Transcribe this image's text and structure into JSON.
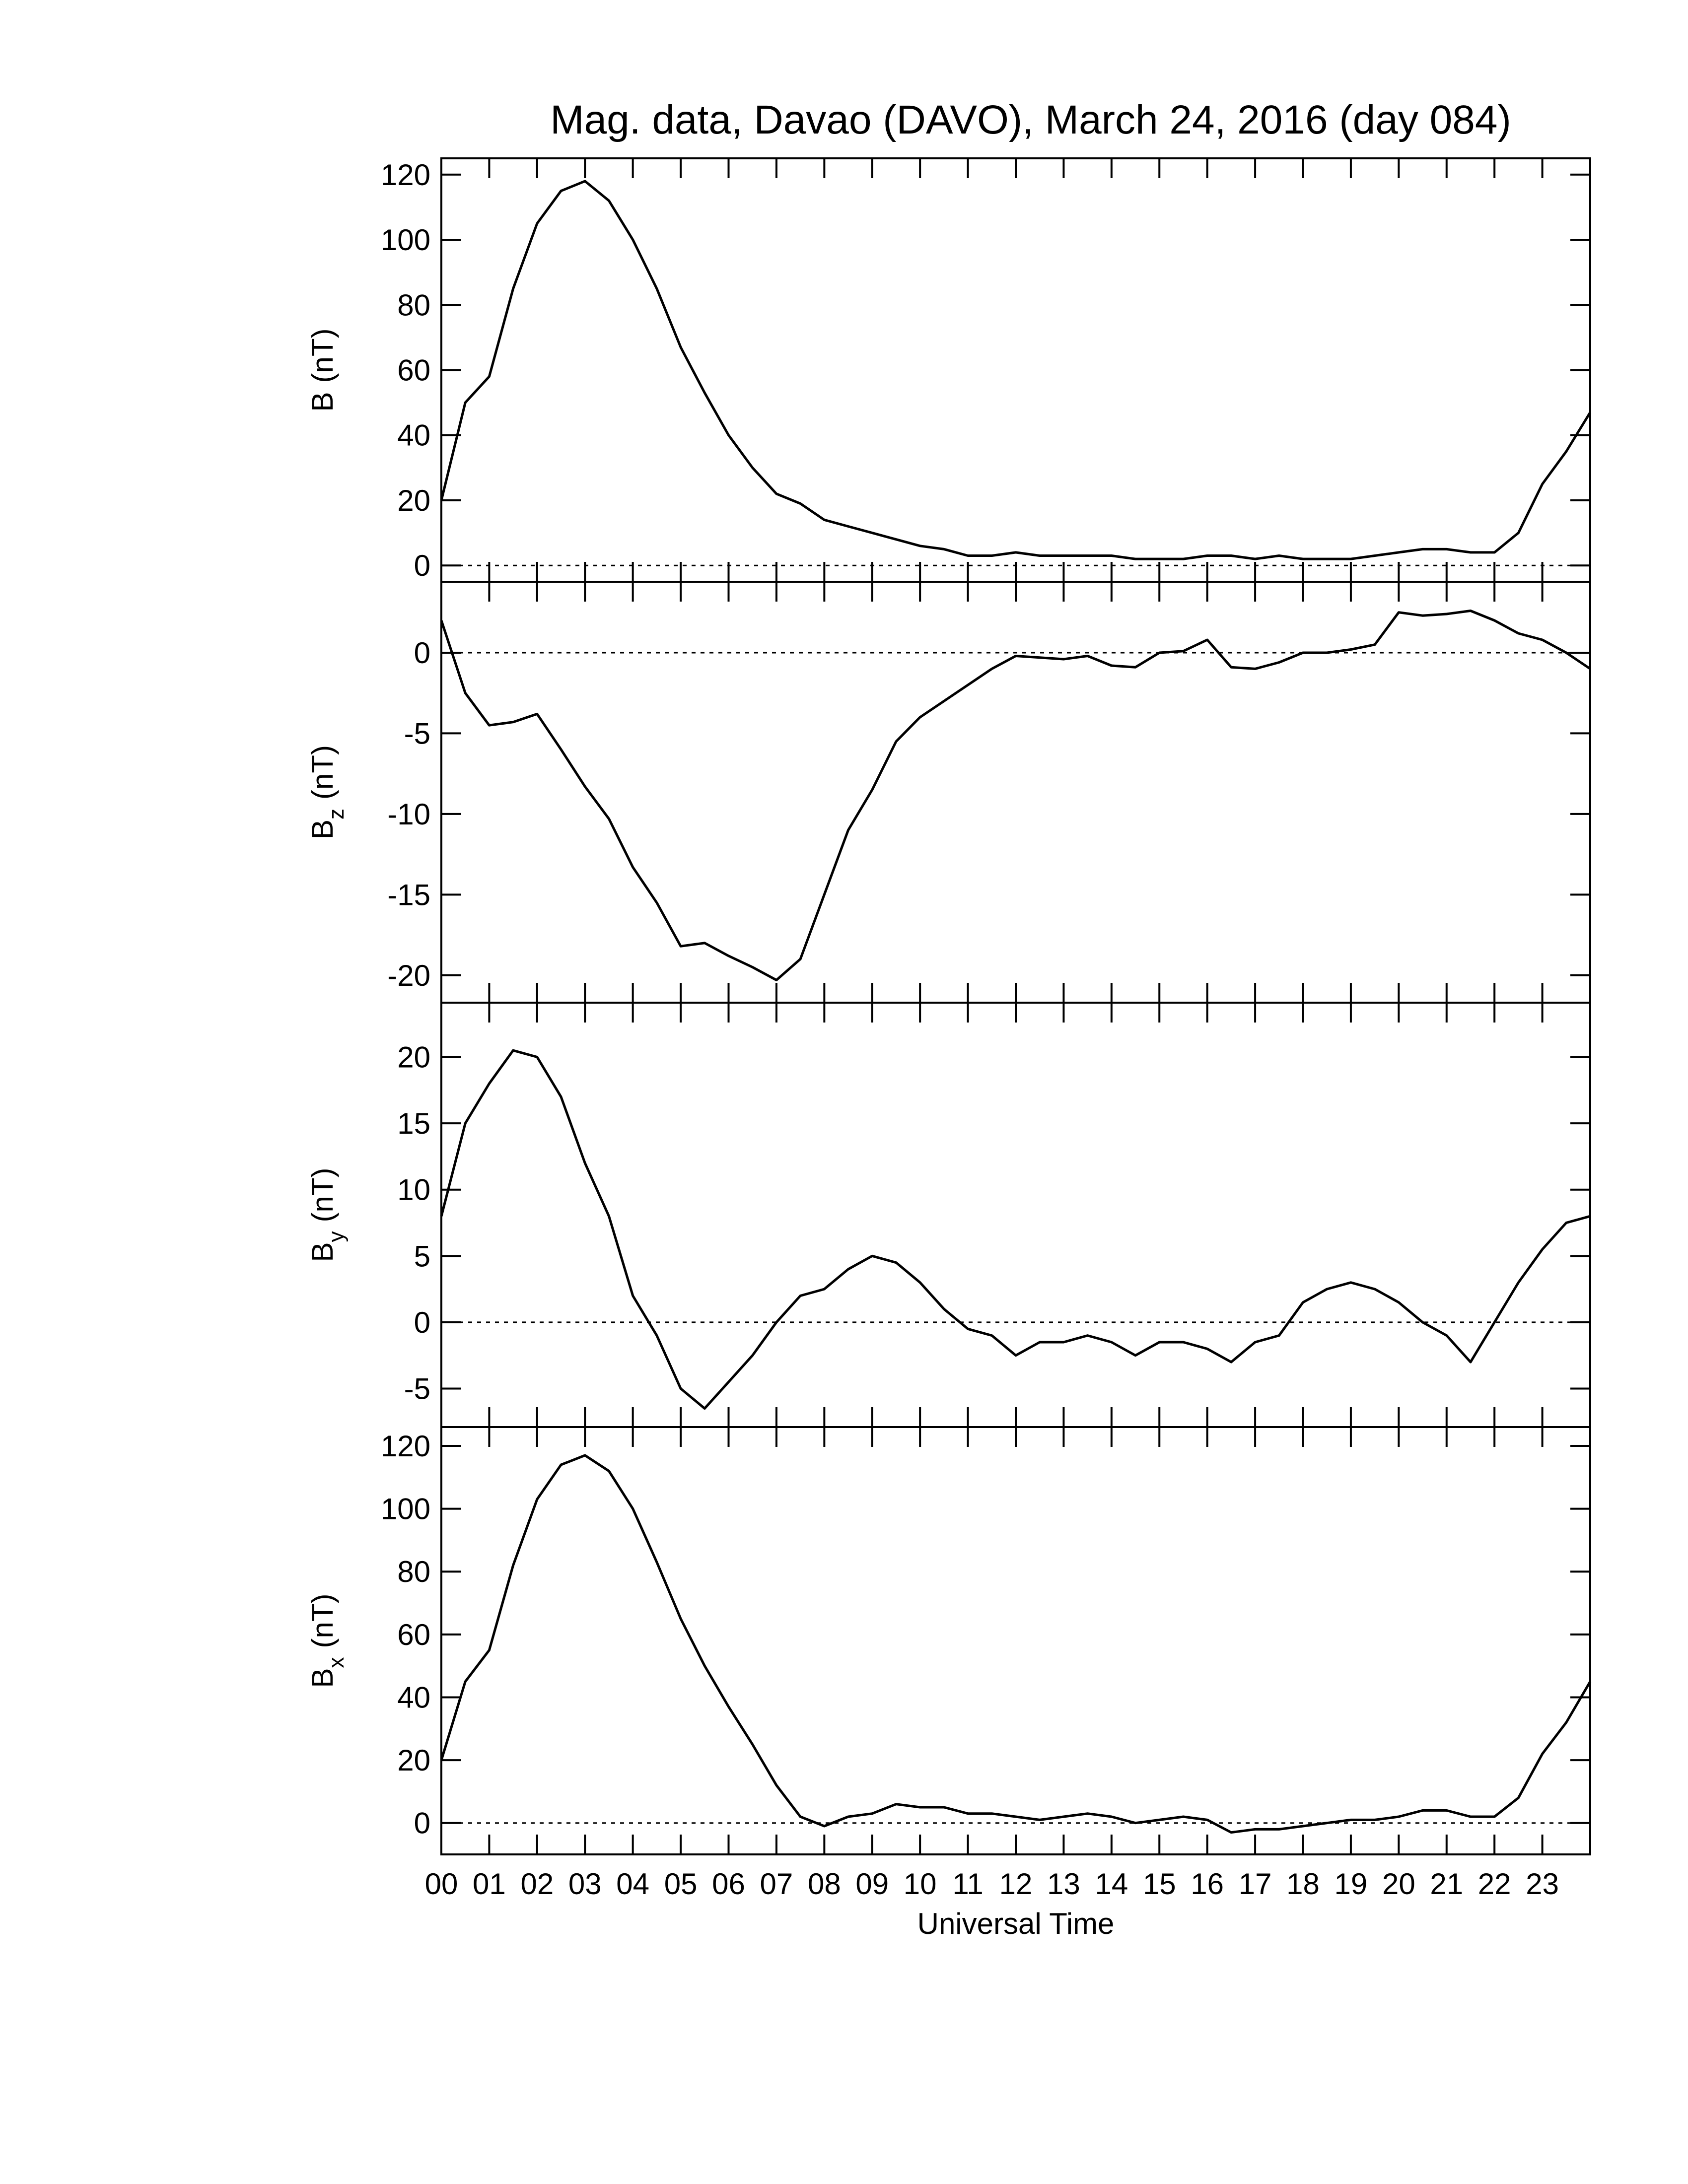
{
  "chart_data": [
    {
      "type": "line",
      "title": "Mag. data, Davao (DAVO), March 24, 2016 (day 084)",
      "ylabel": "B",
      "ylabel_unit": "(nT)",
      "color": "#000000",
      "hline": 0,
      "x": [
        0,
        0.5,
        1,
        1.5,
        2,
        2.5,
        3,
        3.5,
        4,
        4.5,
        5,
        5.5,
        6,
        6.5,
        7,
        7.5,
        8,
        8.5,
        9,
        9.5,
        10,
        10.5,
        11,
        11.5,
        12,
        12.5,
        13,
        13.5,
        14,
        14.5,
        15,
        15.5,
        16,
        16.5,
        17,
        17.5,
        18,
        18.5,
        19,
        19.5,
        20,
        20.5,
        21,
        21.5,
        22,
        22.5,
        23,
        23.5,
        24
      ],
      "values": [
        20,
        50,
        58,
        85,
        105,
        115,
        118,
        112,
        100,
        85,
        67,
        53,
        40,
        30,
        22,
        19,
        14,
        12,
        10,
        8,
        6,
        5,
        3,
        3,
        4,
        3,
        3,
        3,
        3,
        2,
        2,
        2,
        3,
        3,
        2,
        3,
        2,
        2,
        2,
        3,
        4,
        5,
        5,
        4,
        4,
        10,
        25,
        35,
        47
      ],
      "xlim": [
        0,
        24
      ],
      "xticks": [
        0,
        1,
        2,
        3,
        4,
        5,
        6,
        7,
        8,
        9,
        10,
        11,
        12,
        13,
        14,
        15,
        16,
        17,
        18,
        19,
        20,
        21,
        22,
        23
      ],
      "ylim": [
        -5,
        125
      ],
      "yticks": [
        0,
        20,
        40,
        60,
        80,
        100,
        120
      ]
    },
    {
      "type": "line",
      "ylabel": "B",
      "ylabel_sub": "z",
      "ylabel_unit": "(nT)",
      "color": "#000000",
      "hline": 0,
      "x": [
        0,
        0.5,
        1,
        1.5,
        2,
        2.5,
        3,
        3.5,
        4,
        4.5,
        5,
        5.5,
        6,
        6.5,
        7,
        7.5,
        8,
        8.5,
        9,
        9.5,
        10,
        10.5,
        11,
        11.5,
        12,
        12.5,
        13,
        13.5,
        14,
        14.5,
        15,
        15.5,
        16,
        16.5,
        17,
        17.5,
        18,
        18.5,
        19,
        19.5,
        20,
        20.5,
        21,
        21.5,
        22,
        22.5,
        23,
        23.5,
        24
      ],
      "values": [
        2,
        -2.5,
        -4.5,
        -4.3,
        -3.8,
        -6,
        -8.3,
        -10.3,
        -13.3,
        -15.5,
        -18.2,
        -18,
        -18.8,
        -19.5,
        -20.3,
        -19,
        -15,
        -11,
        -8.5,
        -5.5,
        -4,
        -3,
        -2,
        -1,
        -0.2,
        -0.3,
        -0.4,
        -0.2,
        -0.8,
        -0.9,
        0,
        0.1,
        0.8,
        -0.9,
        -1,
        -0.6,
        0,
        0,
        0.2,
        0.5,
        2.5,
        2.3,
        2.4,
        2.6,
        2,
        1.2,
        0.8,
        0,
        -1
      ],
      "xlim": [
        0,
        24
      ],
      "xticks": [
        0,
        1,
        2,
        3,
        4,
        5,
        6,
        7,
        8,
        9,
        10,
        11,
        12,
        13,
        14,
        15,
        16,
        17,
        18,
        19,
        20,
        21,
        22,
        23
      ],
      "ylim": [
        -21.7,
        4.4
      ],
      "yticks": [
        -20,
        -15,
        -10,
        -5,
        0
      ]
    },
    {
      "type": "line",
      "ylabel": "B",
      "ylabel_sub": "y",
      "ylabel_unit": "(nT)",
      "color": "#000000",
      "hline": 0,
      "x": [
        0,
        0.5,
        1,
        1.5,
        2,
        2.5,
        3,
        3.5,
        4,
        4.5,
        5,
        5.5,
        6,
        6.5,
        7,
        7.5,
        8,
        8.5,
        9,
        9.5,
        10,
        10.5,
        11,
        11.5,
        12,
        12.5,
        13,
        13.5,
        14,
        14.5,
        15,
        15.5,
        16,
        16.5,
        17,
        17.5,
        18,
        18.5,
        19,
        19.5,
        20,
        20.5,
        21,
        21.5,
        22,
        22.5,
        23,
        23.5,
        24
      ],
      "values": [
        8,
        15,
        18,
        20.5,
        20,
        17,
        12,
        8,
        2,
        -1,
        -5,
        -6.5,
        -4.5,
        -2.5,
        0,
        2,
        2.5,
        4,
        5,
        4.5,
        3,
        1,
        -0.5,
        -1,
        -2.5,
        -1.5,
        -1.5,
        -1,
        -1.5,
        -2.5,
        -1.5,
        -1.5,
        -2,
        -3,
        -1.5,
        -1,
        1.5,
        2.5,
        3,
        2.5,
        1.5,
        0,
        -1,
        -3,
        0,
        3,
        5.5,
        7.5,
        8
      ],
      "xlim": [
        0,
        24
      ],
      "xticks": [
        0,
        1,
        2,
        3,
        4,
        5,
        6,
        7,
        8,
        9,
        10,
        11,
        12,
        13,
        14,
        15,
        16,
        17,
        18,
        19,
        20,
        21,
        22,
        23
      ],
      "ylim": [
        -7.9,
        24.1
      ],
      "yticks": [
        -5,
        0,
        5,
        10,
        15,
        20
      ]
    },
    {
      "type": "line",
      "ylabel": "B",
      "ylabel_sub": "x",
      "ylabel_unit": "(nT)",
      "xlabel": "Universal Time",
      "color": "#000000",
      "hline": 0,
      "x": [
        0,
        0.5,
        1,
        1.5,
        2,
        2.5,
        3,
        3.5,
        4,
        4.5,
        5,
        5.5,
        6,
        6.5,
        7,
        7.5,
        8,
        8.5,
        9,
        9.5,
        10,
        10.5,
        11,
        11.5,
        12,
        12.5,
        13,
        13.5,
        14,
        14.5,
        15,
        15.5,
        16,
        16.5,
        17,
        17.5,
        18,
        18.5,
        19,
        19.5,
        20,
        20.5,
        21,
        21.5,
        22,
        22.5,
        23,
        23.5,
        24
      ],
      "values": [
        20,
        45,
        55,
        82,
        103,
        114,
        117,
        112,
        100,
        83,
        65,
        50,
        37,
        25,
        12,
        2,
        -1,
        2,
        3,
        6,
        5,
        5,
        3,
        3,
        2,
        1,
        2,
        3,
        2,
        0,
        1,
        2,
        1,
        -3,
        -2,
        -2,
        -1,
        0,
        1,
        1,
        2,
        4,
        4,
        2,
        2,
        8,
        22,
        32,
        45
      ],
      "xlim": [
        0,
        24
      ],
      "xticks": [
        {
          "value": 0,
          "label": "00"
        },
        {
          "value": 1,
          "label": "01"
        },
        {
          "value": 2,
          "label": "02"
        },
        {
          "value": 3,
          "label": "03"
        },
        {
          "value": 4,
          "label": "04"
        },
        {
          "value": 5,
          "label": "05"
        },
        {
          "value": 6,
          "label": "06"
        },
        {
          "value": 7,
          "label": "07"
        },
        {
          "value": 8,
          "label": "08"
        },
        {
          "value": 9,
          "label": "09"
        },
        {
          "value": 10,
          "label": "10"
        },
        {
          "value": 11,
          "label": "11"
        },
        {
          "value": 12,
          "label": "12"
        },
        {
          "value": 13,
          "label": "13"
        },
        {
          "value": 14,
          "label": "14"
        },
        {
          "value": 15,
          "label": "15"
        },
        {
          "value": 16,
          "label": "16"
        },
        {
          "value": 17,
          "label": "17"
        },
        {
          "value": 18,
          "label": "18"
        },
        {
          "value": 19,
          "label": "19"
        },
        {
          "value": 20,
          "label": "20"
        },
        {
          "value": 21,
          "label": "21"
        },
        {
          "value": 22,
          "label": "22"
        },
        {
          "value": 23,
          "label": "23"
        }
      ],
      "ylim": [
        -10,
        126
      ],
      "yticks": [
        0,
        20,
        40,
        60,
        80,
        100,
        120
      ]
    }
  ]
}
